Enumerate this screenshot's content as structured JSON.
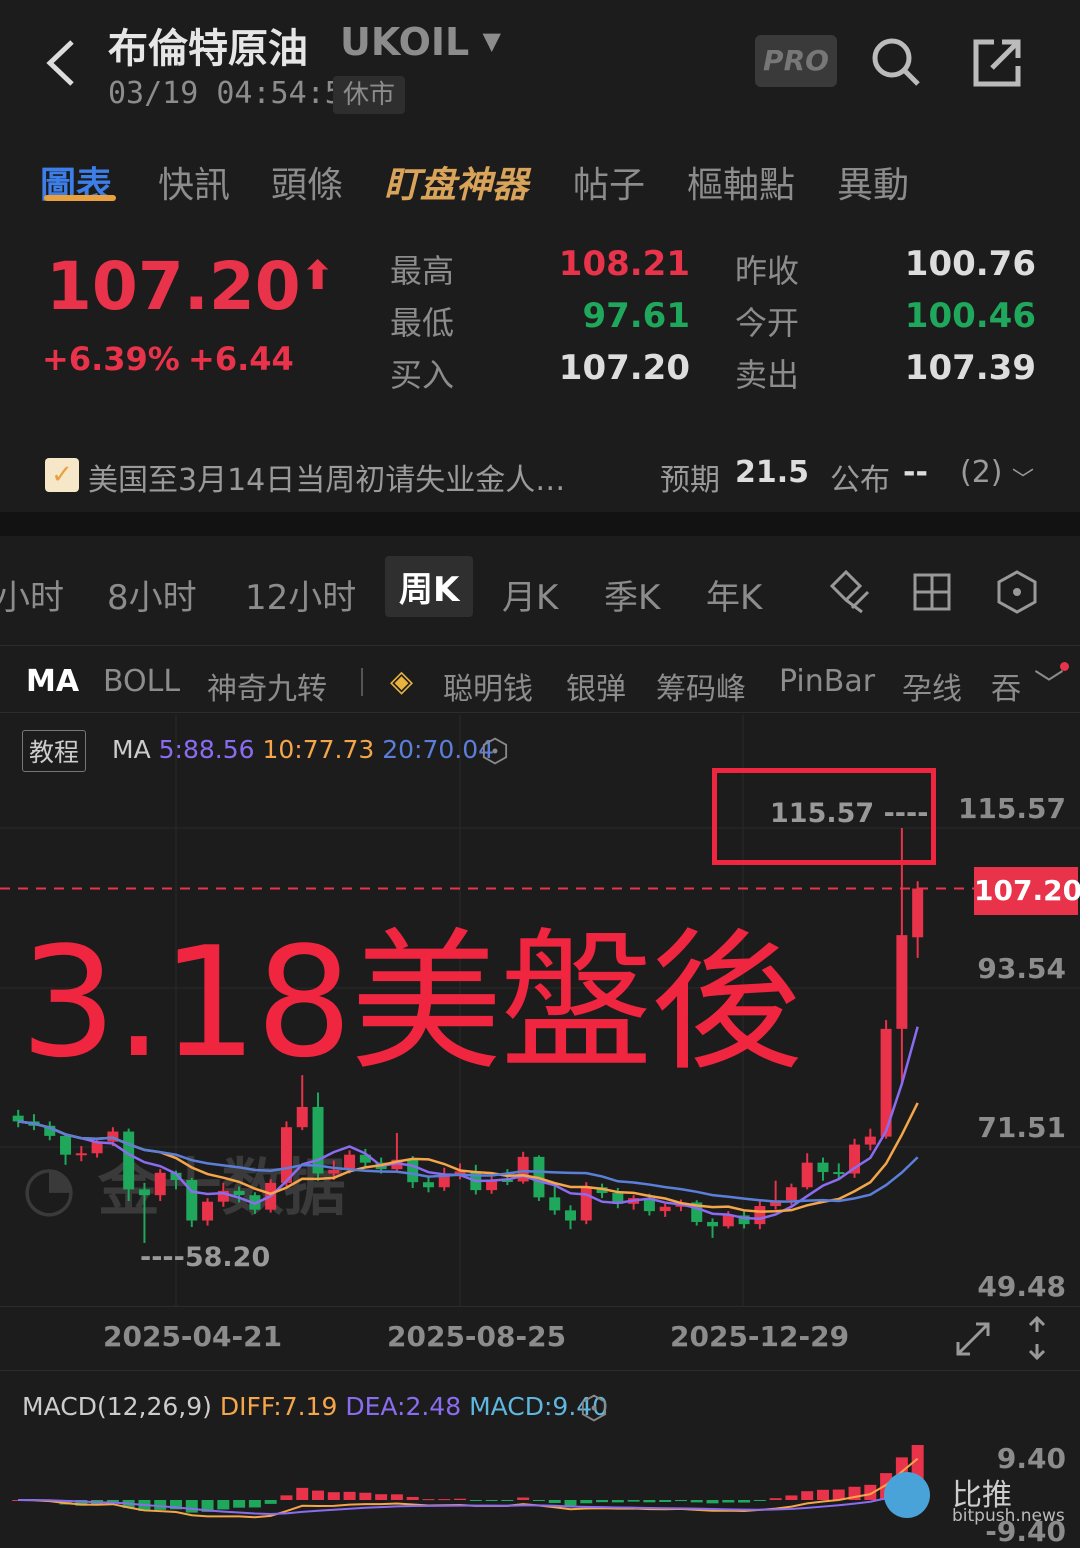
{
  "header": {
    "title": "布倫特原油",
    "symbol": "UKOIL",
    "time": "03/19 04:54:59",
    "status": "休市",
    "pro": "PRO"
  },
  "tabs": [
    {
      "label": "圖表",
      "active": true
    },
    {
      "label": "快訊"
    },
    {
      "label": "頭條"
    },
    {
      "label": "盯盘神器"
    },
    {
      "label": "帖子"
    },
    {
      "label": "樞軸點"
    },
    {
      "label": "異動"
    }
  ],
  "quote": {
    "price": "107.20",
    "change_pct": "+6.39%",
    "change": "+6.44",
    "fields": [
      {
        "label": "最高",
        "value": "108.21",
        "color": "red"
      },
      {
        "label": "昨收",
        "value": "100.76",
        "color": "white"
      },
      {
        "label": "最低",
        "value": "97.61",
        "color": "green"
      },
      {
        "label": "今开",
        "value": "100.46",
        "color": "green"
      },
      {
        "label": "买入",
        "value": "107.20",
        "color": "white"
      },
      {
        "label": "卖出",
        "value": "107.39",
        "color": "white"
      }
    ]
  },
  "overlay_text": "3.18美盤後",
  "news": {
    "text": "美国至3月14日当周初请失业金人…",
    "expected_label": "预期",
    "expected": "21.5",
    "publish_label": "公布",
    "publish": "--",
    "count": "(2)"
  },
  "periods": [
    "小时",
    "8小时",
    "12小时",
    "周K",
    "月K",
    "季K",
    "年K"
  ],
  "selected_period": "周K",
  "indicators": [
    "MA",
    "BOLL",
    "神奇九转",
    "聪明钱",
    "银弹",
    "筹码峰",
    "PinBar",
    "孕线",
    "吞"
  ],
  "chart": {
    "tutorial": "教程",
    "ma_label": "MA",
    "ma5": "5:88.56",
    "ma10": "10:77.73",
    "ma20": "20:70.04",
    "y_axis": [
      "115.57",
      "93.54",
      "71.51",
      "49.48"
    ],
    "last_price": "107.20",
    "high_marker": "115.57 ----",
    "low_marker": "----58.20",
    "x_axis": [
      "2025-04-21",
      "2025-08-25",
      "2025-12-29"
    ],
    "watermark": "金十数据"
  },
  "macd": {
    "label": "MACD(12,26,9)",
    "diff": "DIFF:7.19",
    "dea": "DEA:2.48",
    "macd": "MACD:9.40",
    "top": "9.40",
    "bottom": "-9.40"
  },
  "brand": {
    "name": "比推",
    "domain": "bitpush.news"
  },
  "colors": {
    "up": "#e8334a",
    "down": "#1fa75c",
    "ma5": "#8a6cf0",
    "ma10": "#f5a54a",
    "ma20": "#5b7fd9",
    "accent": "#3d7ee8"
  },
  "chart_data": {
    "type": "candlestick",
    "interval": "weekly",
    "start": "2025-02-10",
    "ohlc": [
      [
        75.8,
        76.6,
        74.2,
        75.0
      ],
      [
        75.0,
        76.0,
        73.8,
        74.4
      ],
      [
        74.4,
        75.0,
        72.4,
        73.0
      ],
      [
        73.0,
        73.4,
        69.0,
        70.4
      ],
      [
        70.4,
        71.6,
        69.5,
        70.6
      ],
      [
        70.6,
        72.8,
        70.0,
        72.2
      ],
      [
        72.2,
        74.2,
        71.6,
        73.6
      ],
      [
        73.6,
        74.0,
        64.0,
        65.6
      ],
      [
        65.6,
        66.5,
        58.2,
        64.8
      ],
      [
        64.8,
        68.4,
        64.0,
        67.9
      ],
      [
        67.9,
        68.2,
        65.6,
        66.9
      ],
      [
        66.9,
        67.2,
        60.4,
        61.3
      ],
      [
        61.3,
        64.4,
        60.6,
        63.9
      ],
      [
        63.9,
        66.5,
        63.2,
        65.4
      ],
      [
        65.4,
        66.0,
        63.8,
        64.8
      ],
      [
        64.8,
        65.2,
        62.2,
        62.8
      ],
      [
        62.8,
        67.0,
        62.4,
        66.5
      ],
      [
        66.5,
        75.0,
        66.0,
        74.2
      ],
      [
        74.2,
        81.4,
        73.8,
        77.0
      ],
      [
        77.0,
        79.0,
        66.8,
        67.8
      ],
      [
        67.8,
        69.6,
        66.9,
        68.3
      ],
      [
        68.3,
        71.0,
        67.8,
        70.4
      ],
      [
        70.4,
        71.2,
        68.6,
        69.3
      ],
      [
        69.3,
        70.0,
        67.8,
        68.4
      ],
      [
        68.4,
        73.4,
        68.0,
        69.7
      ],
      [
        69.7,
        70.2,
        65.8,
        66.6
      ],
      [
        66.6,
        67.4,
        65.2,
        65.9
      ],
      [
        65.9,
        68.6,
        65.4,
        67.7
      ],
      [
        67.7,
        69.2,
        67.0,
        68.1
      ],
      [
        68.1,
        69.0,
        64.9,
        65.5
      ],
      [
        65.5,
        67.6,
        65.0,
        66.9
      ],
      [
        66.9,
        68.4,
        66.2,
        66.7
      ],
      [
        66.7,
        70.8,
        66.4,
        70.1
      ],
      [
        70.1,
        70.3,
        64.0,
        64.5
      ],
      [
        64.5,
        66.2,
        62.1,
        62.7
      ],
      [
        62.7,
        63.4,
        60.1,
        61.3
      ],
      [
        61.3,
        66.6,
        60.8,
        65.9
      ],
      [
        65.9,
        66.4,
        64.4,
        65.1
      ],
      [
        65.1,
        65.8,
        63.0,
        63.6
      ],
      [
        63.6,
        64.8,
        62.8,
        64.4
      ],
      [
        64.4,
        65.0,
        62.0,
        62.6
      ],
      [
        62.6,
        63.6,
        61.8,
        63.2
      ],
      [
        63.2,
        64.2,
        62.6,
        63.8
      ],
      [
        63.8,
        64.1,
        60.6,
        61.1
      ],
      [
        61.1,
        61.6,
        58.9,
        60.5
      ],
      [
        60.5,
        62.6,
        60.2,
        62.0
      ],
      [
        62.0,
        62.6,
        60.2,
        60.8
      ],
      [
        60.8,
        64.2,
        60.1,
        63.3
      ],
      [
        63.3,
        66.8,
        62.8,
        64.1
      ],
      [
        64.1,
        66.4,
        63.4,
        65.9
      ],
      [
        65.9,
        70.6,
        65.6,
        69.3
      ],
      [
        69.3,
        70.0,
        66.8,
        68.0
      ],
      [
        68.0,
        69.2,
        67.0,
        67.8
      ],
      [
        67.8,
        72.6,
        67.2,
        71.8
      ],
      [
        71.8,
        74.0,
        71.0,
        72.9
      ],
      [
        72.9,
        89.0,
        72.6,
        87.8
      ],
      [
        87.8,
        115.57,
        80.0,
        100.76
      ],
      [
        100.46,
        108.21,
        97.61,
        107.2
      ]
    ],
    "y_range": [
      49.48,
      115.57
    ],
    "x_ticks": [
      "2025-04-21",
      "2025-08-25",
      "2025-12-29"
    ],
    "overlays": [
      "MA5",
      "MA10",
      "MA20"
    ],
    "grid": true
  }
}
